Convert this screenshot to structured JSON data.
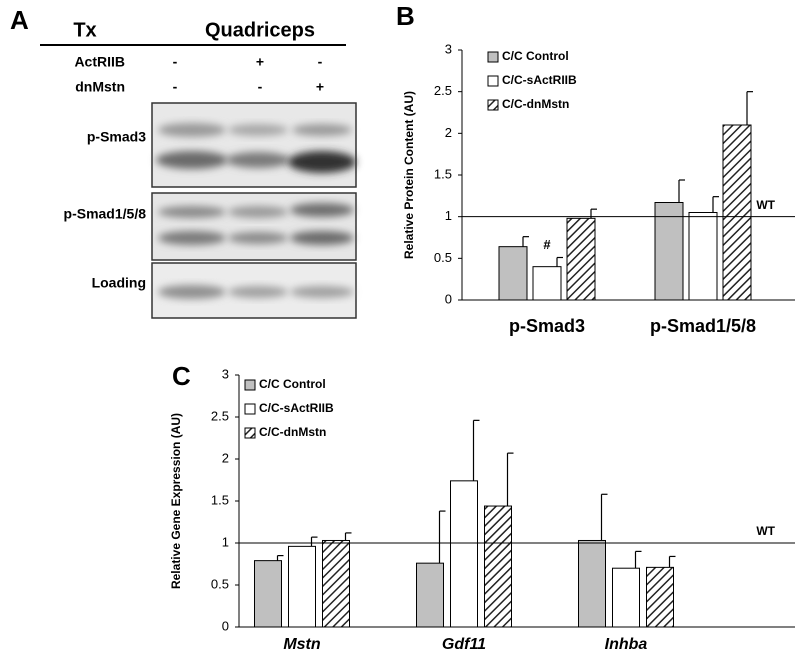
{
  "panel_labels": [
    "A",
    "B",
    "C"
  ],
  "blot": {
    "header": {
      "treatment": "Tx",
      "tissue": "Quadriceps"
    },
    "rows": [
      {
        "label": "ActRIIB",
        "signs": [
          "-",
          "+",
          "-"
        ]
      },
      {
        "label": "dnMstn",
        "signs": [
          "-",
          "-",
          "+"
        ]
      }
    ],
    "bands": [
      "p-Smad3",
      "p-Smad1/5/8",
      "Loading"
    ]
  },
  "chart_data": [
    {
      "type": "bar",
      "y_label": "Relative Protein Content (AU)",
      "categories": [
        "p-Smad3",
        "p-Smad1/5/8"
      ],
      "series": [
        {
          "name": "C/C Control",
          "color": "#c0c0c0",
          "values": [
            0.64,
            1.17
          ],
          "errors": [
            0.12,
            0.27
          ]
        },
        {
          "name": "C/C-sActRIIB",
          "color": "#ffffff",
          "values": [
            0.4,
            1.05
          ],
          "errors": [
            0.11,
            0.19
          ]
        },
        {
          "name": "C/C-dnMstn",
          "color": "hatch",
          "values": [
            0.98,
            2.1
          ],
          "errors": [
            0.11,
            0.4
          ]
        }
      ],
      "ylim": [
        0,
        3
      ],
      "yticks": [
        0,
        0.5,
        1,
        1.5,
        2,
        2.5,
        3
      ],
      "reference_line": {
        "value": 1,
        "label": "WT"
      },
      "annotations": [
        {
          "text": "#"
        }
      ],
      "legend": "upper-left"
    },
    {
      "type": "bar",
      "y_label": "Relative Gene Expression (AU)",
      "categories": [
        "Mstn",
        "Gdf11",
        "Inhba"
      ],
      "series": [
        {
          "name": "C/C Control",
          "color": "#c0c0c0",
          "values": [
            0.79,
            0.76,
            1.03
          ],
          "errors": [
            0.06,
            0.62,
            0.55
          ]
        },
        {
          "name": "C/C-sActRIIB",
          "color": "#ffffff",
          "values": [
            0.96,
            1.74,
            0.7
          ],
          "errors": [
            0.11,
            0.72,
            0.2
          ]
        },
        {
          "name": "C/C-dnMstn",
          "color": "hatch",
          "values": [
            1.03,
            1.44,
            0.71
          ],
          "errors": [
            0.09,
            0.63,
            0.13
          ]
        }
      ],
      "ylim": [
        0,
        3
      ],
      "yticks": [
        0,
        0.5,
        1,
        1.5,
        2,
        2.5,
        3
      ],
      "reference_line": {
        "value": 1,
        "label": "WT"
      },
      "legend": "upper-left"
    }
  ]
}
